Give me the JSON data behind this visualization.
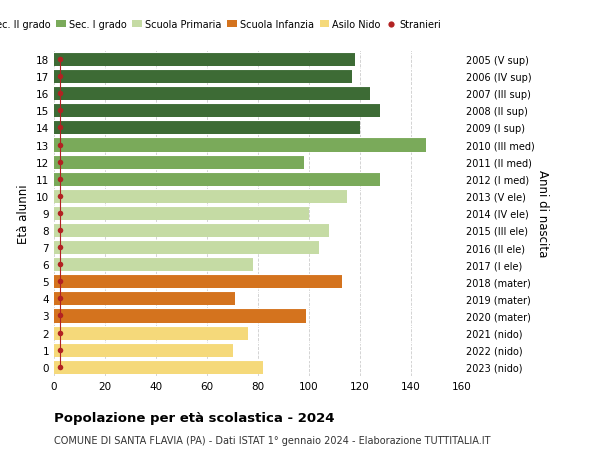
{
  "ages": [
    18,
    17,
    16,
    15,
    14,
    13,
    12,
    11,
    10,
    9,
    8,
    7,
    6,
    5,
    4,
    3,
    2,
    1,
    0
  ],
  "values": [
    118,
    117,
    124,
    128,
    120,
    146,
    98,
    128,
    115,
    100,
    108,
    104,
    78,
    113,
    71,
    99,
    76,
    70,
    82
  ],
  "right_labels": [
    "2005 (V sup)",
    "2006 (IV sup)",
    "2007 (III sup)",
    "2008 (II sup)",
    "2009 (I sup)",
    "2010 (III med)",
    "2011 (II med)",
    "2012 (I med)",
    "2013 (V ele)",
    "2014 (IV ele)",
    "2015 (III ele)",
    "2016 (II ele)",
    "2017 (I ele)",
    "2018 (mater)",
    "2019 (mater)",
    "2020 (mater)",
    "2021 (nido)",
    "2022 (nido)",
    "2023 (nido)"
  ],
  "bar_colors": [
    "#3d6b35",
    "#3d6b35",
    "#3d6b35",
    "#3d6b35",
    "#3d6b35",
    "#7aaa5a",
    "#7aaa5a",
    "#7aaa5a",
    "#c5dba4",
    "#c5dba4",
    "#c5dba4",
    "#c5dba4",
    "#c5dba4",
    "#d4731e",
    "#d4731e",
    "#d4731e",
    "#f5d97a",
    "#f5d97a",
    "#f5d97a"
  ],
  "legend_labels": [
    "Sec. II grado",
    "Sec. I grado",
    "Scuola Primaria",
    "Scuola Infanzia",
    "Asilo Nido",
    "Stranieri"
  ],
  "legend_colors": [
    "#3d6b35",
    "#7aaa5a",
    "#c5dba4",
    "#d4731e",
    "#f5d97a",
    "#cc2222"
  ],
  "title": "Popolazione per età scolastica - 2024",
  "subtitle": "COMUNE DI SANTA FLAVIA (PA) - Dati ISTAT 1° gennaio 2024 - Elaborazione TUTTITALIA.IT",
  "ylabel": "Età alunni",
  "ylabel_right": "Anni di nascita",
  "xlim": [
    0,
    160
  ],
  "xticks": [
    0,
    20,
    40,
    60,
    80,
    100,
    120,
    140,
    160
  ],
  "background_color": "#ffffff",
  "grid_color": "#cccccc",
  "stranieri_color": "#b22222"
}
